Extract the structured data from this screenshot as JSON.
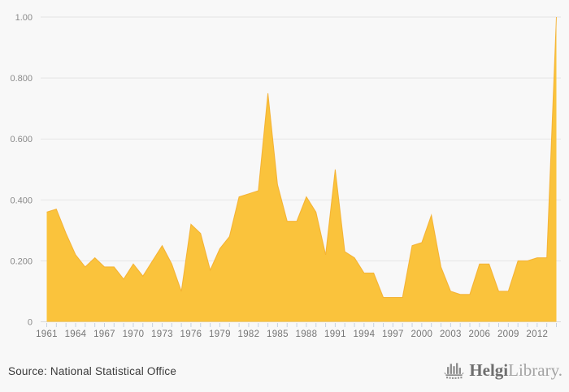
{
  "page": {
    "background_color": "#f8f8f8"
  },
  "chart_data": {
    "type": "area",
    "title": "",
    "xlabel": "",
    "ylabel": "",
    "x": [
      1961,
      1962,
      1963,
      1964,
      1965,
      1966,
      1967,
      1968,
      1969,
      1970,
      1971,
      1972,
      1973,
      1974,
      1975,
      1976,
      1977,
      1978,
      1979,
      1980,
      1981,
      1982,
      1983,
      1984,
      1985,
      1986,
      1987,
      1988,
      1989,
      1990,
      1991,
      1992,
      1993,
      1994,
      1995,
      1996,
      1997,
      1998,
      1999,
      2000,
      2001,
      2002,
      2003,
      2004,
      2005,
      2006,
      2007,
      2008,
      2009,
      2010,
      2011,
      2012,
      2013,
      2014
    ],
    "values": [
      0.36,
      0.37,
      0.29,
      0.22,
      0.18,
      0.21,
      0.18,
      0.18,
      0.14,
      0.19,
      0.15,
      0.2,
      0.25,
      0.19,
      0.1,
      0.32,
      0.29,
      0.17,
      0.24,
      0.28,
      0.41,
      0.42,
      0.43,
      0.75,
      0.45,
      0.33,
      0.33,
      0.41,
      0.36,
      0.22,
      0.5,
      0.23,
      0.21,
      0.16,
      0.16,
      0.08,
      0.08,
      0.08,
      0.25,
      0.26,
      0.35,
      0.18,
      0.1,
      0.09,
      0.09,
      0.19,
      0.19,
      0.1,
      0.1,
      0.2,
      0.2,
      0.21,
      0.21,
      1.0
    ],
    "ylim": [
      0,
      1.0
    ],
    "grid": true,
    "legend": "none",
    "y_tick_labels": [
      "1.00",
      "0.800",
      "0.600",
      "0.400",
      "0.200",
      "0"
    ],
    "y_tick_values": [
      1.0,
      0.8,
      0.6,
      0.4,
      0.2,
      0
    ],
    "x_tick_label_years": [
      1961,
      1964,
      1967,
      1970,
      1973,
      1976,
      1979,
      1982,
      1985,
      1988,
      1991,
      1994,
      1997,
      2000,
      2003,
      2006,
      2009,
      2012
    ],
    "colors": {
      "area_fill": "#FAC33C",
      "area_edge": "#F3AC28",
      "gridline": "#e5e5e5",
      "baseline": "#d9d9d9",
      "tick": "#c6d2e2",
      "x_label": "#757575",
      "y_label": "#8a8a8a"
    }
  },
  "footer": {
    "source": "Source: National Statistical Office",
    "logo": {
      "brand_bold": "Helgi",
      "brand_light": "Library."
    }
  }
}
